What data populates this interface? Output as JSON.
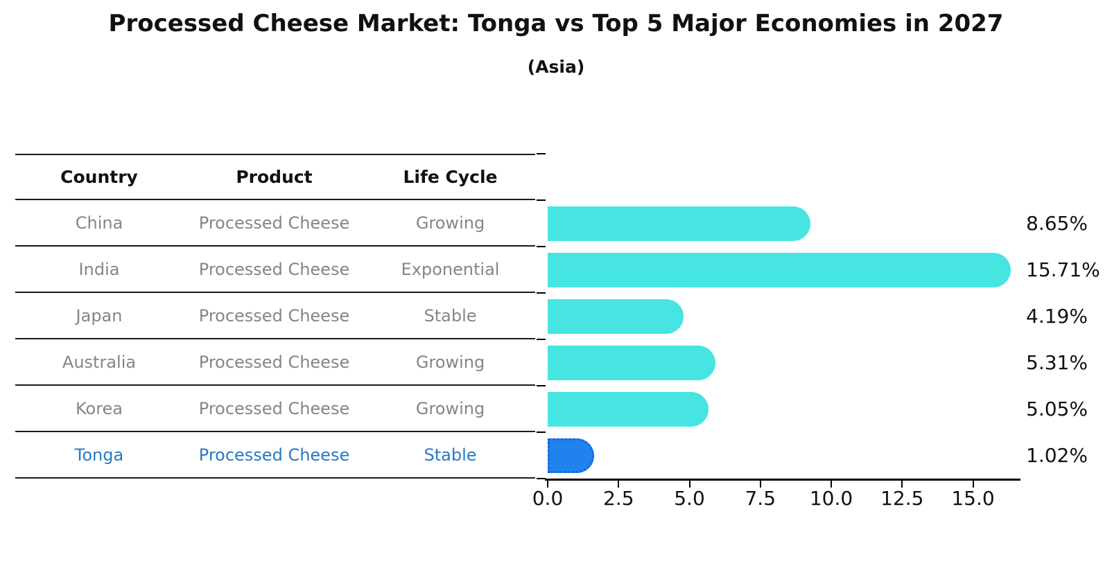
{
  "title": "Processed Cheese Market: Tonga vs Top 5 Major Economies in 2027",
  "subtitle": "(Asia)",
  "table": {
    "headers": [
      "Country",
      "Product",
      "Life Cycle"
    ],
    "rows": [
      {
        "country": "China",
        "product": "Processed Cheese",
        "life_cycle": "Growing"
      },
      {
        "country": "India",
        "product": "Processed Cheese",
        "life_cycle": "Exponential"
      },
      {
        "country": "Japan",
        "product": "Processed Cheese",
        "life_cycle": "Stable"
      },
      {
        "country": "Australia",
        "product": "Processed Cheese",
        "life_cycle": "Growing"
      },
      {
        "country": "Korea",
        "product": "Processed Cheese",
        "life_cycle": "Growing"
      },
      {
        "country": "Tonga",
        "product": "Processed Cheese",
        "life_cycle": "Stable"
      }
    ]
  },
  "chart_data": {
    "type": "bar",
    "orientation": "horizontal",
    "title": "Processed Cheese Market: Tonga vs Top 5 Major Economies in 2027",
    "subtitle": "(Asia)",
    "categories": [
      "China",
      "India",
      "Japan",
      "Australia",
      "Korea",
      "Tonga"
    ],
    "values": [
      8.65,
      15.71,
      4.19,
      5.31,
      5.05,
      1.02
    ],
    "value_labels": [
      "8.65%",
      "15.71%",
      "4.19%",
      "5.31%",
      "5.05%",
      "1.02%"
    ],
    "x_ticks": [
      "0.0",
      "2.5",
      "5.0",
      "7.5",
      "10.0",
      "12.5",
      "15.0"
    ],
    "xlim": [
      0,
      16.5
    ],
    "grid": false,
    "legend": "none",
    "bar_color": "#46E5E1",
    "highlight_index": 5,
    "highlight_color": "#2082EC",
    "highlight_edge_color": "#1565D8",
    "highlight_style": "dotted-edge"
  },
  "colors": {
    "background": "#ffffff",
    "table_line": "#1a1a1a",
    "table_text": "#858585",
    "header_text": "#111111",
    "highlight_text": "#2878C8"
  }
}
